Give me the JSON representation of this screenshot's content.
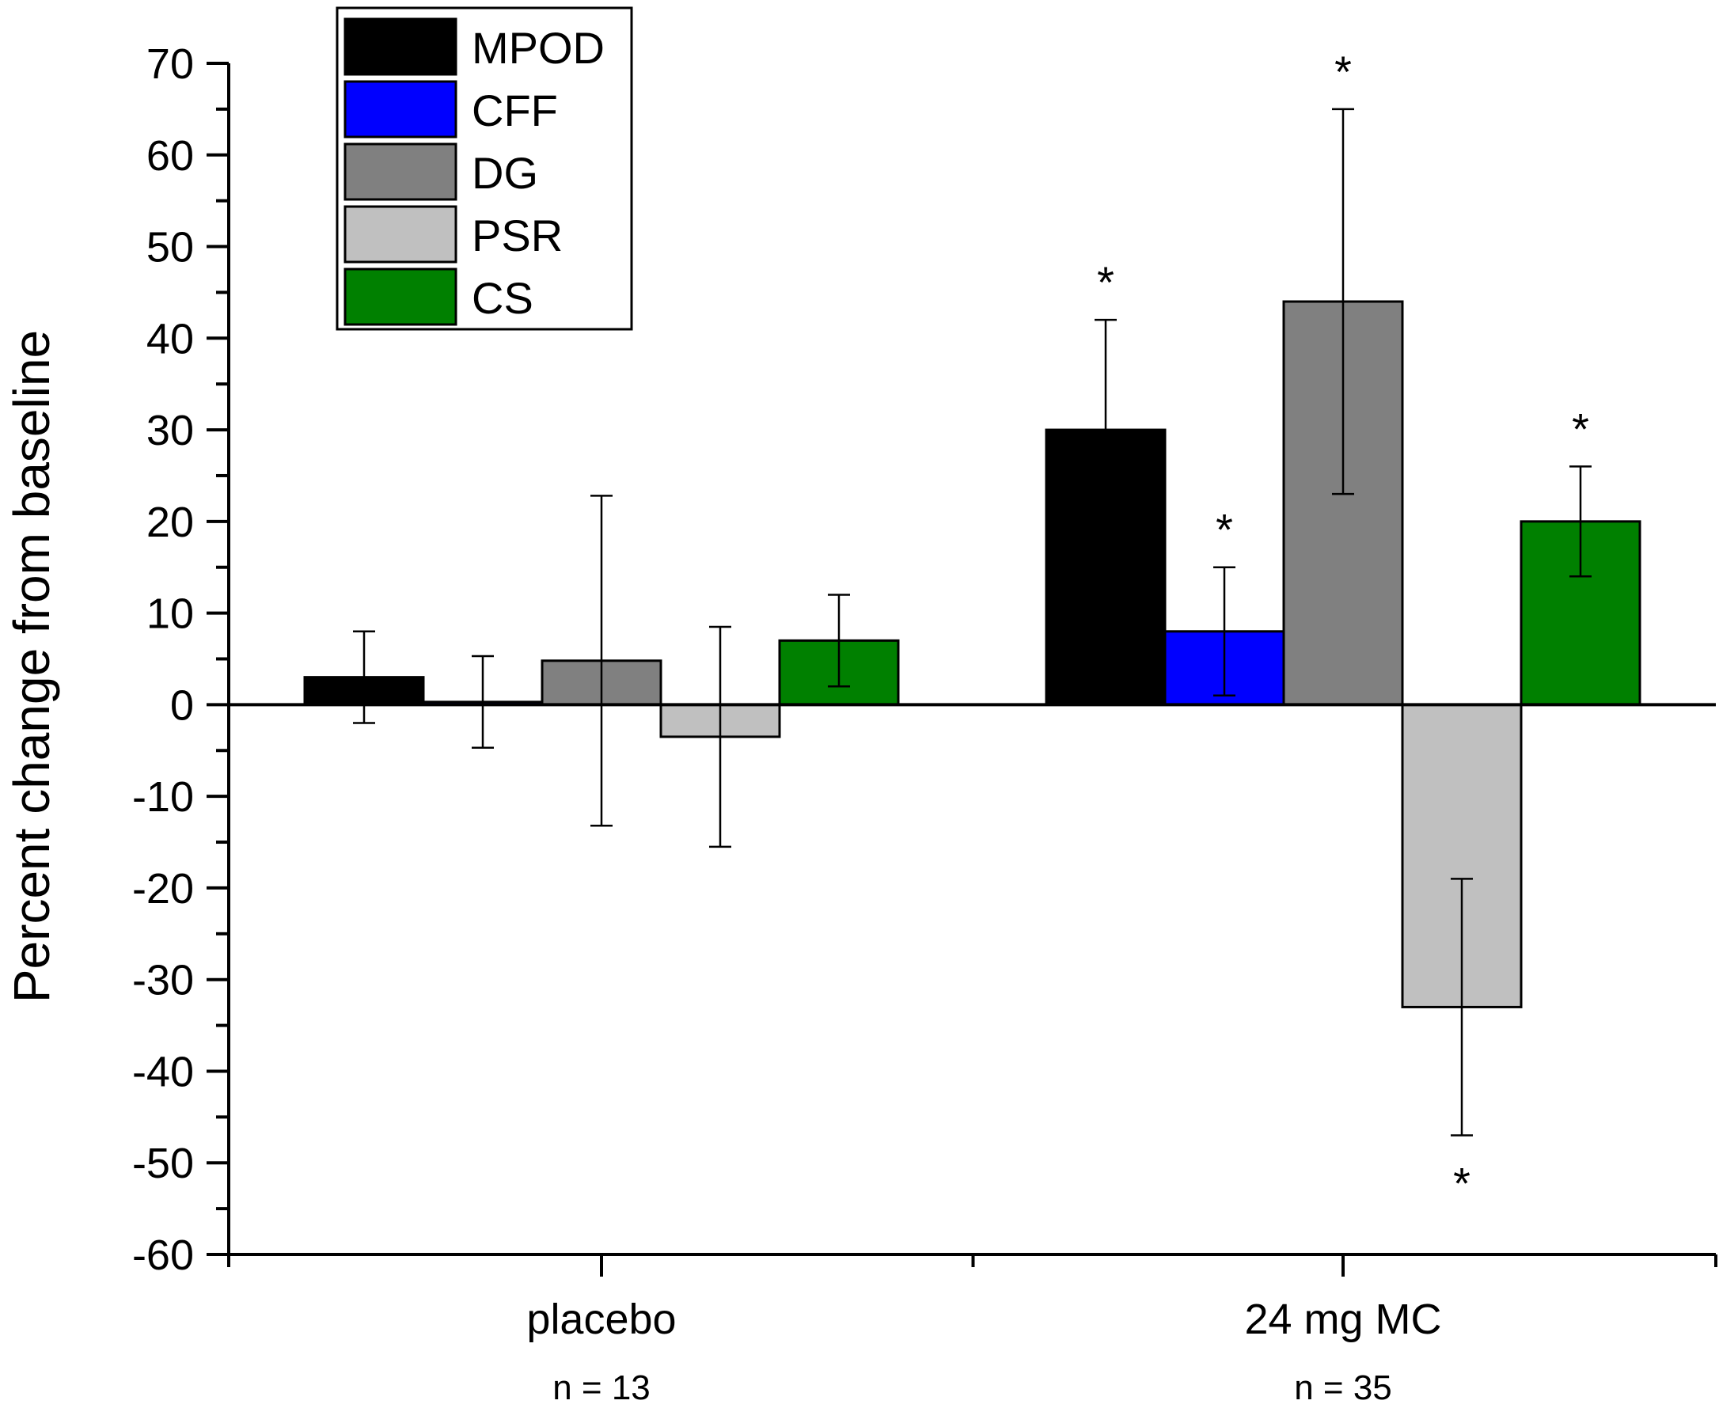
{
  "chart_data": {
    "type": "bar",
    "title": "",
    "ylabel": "Percent change from baseline",
    "xlabel": "",
    "ylim": [
      -60,
      70
    ],
    "yticks": [
      70,
      60,
      50,
      40,
      30,
      20,
      10,
      0,
      -10,
      -20,
      -30,
      -40,
      -50,
      -60
    ],
    "categories": [
      "placebo",
      "24 mg MC"
    ],
    "category_notes": [
      "n = 13",
      "n = 35"
    ],
    "legend_position": "top-left",
    "series": [
      {
        "name": "MPOD",
        "color": "#000000",
        "values": [
          3,
          30
        ],
        "errors": [
          5,
          12
        ],
        "significant": [
          false,
          true
        ]
      },
      {
        "name": "CFF",
        "color": "#0000ff",
        "values": [
          0.3,
          8
        ],
        "errors": [
          5,
          7
        ],
        "significant": [
          false,
          true
        ]
      },
      {
        "name": "DG",
        "color": "#808080",
        "values": [
          4.8,
          44
        ],
        "errors": [
          18,
          21
        ],
        "significant": [
          false,
          true
        ]
      },
      {
        "name": "PSR",
        "color": "#c0c0c0",
        "values": [
          -3.5,
          -33
        ],
        "errors": [
          12,
          14
        ],
        "significant": [
          false,
          true
        ]
      },
      {
        "name": "CS",
        "color": "#008000",
        "values": [
          7,
          20
        ],
        "errors": [
          5,
          6
        ],
        "significant": [
          false,
          true
        ]
      }
    ],
    "significance_marker": "*"
  }
}
